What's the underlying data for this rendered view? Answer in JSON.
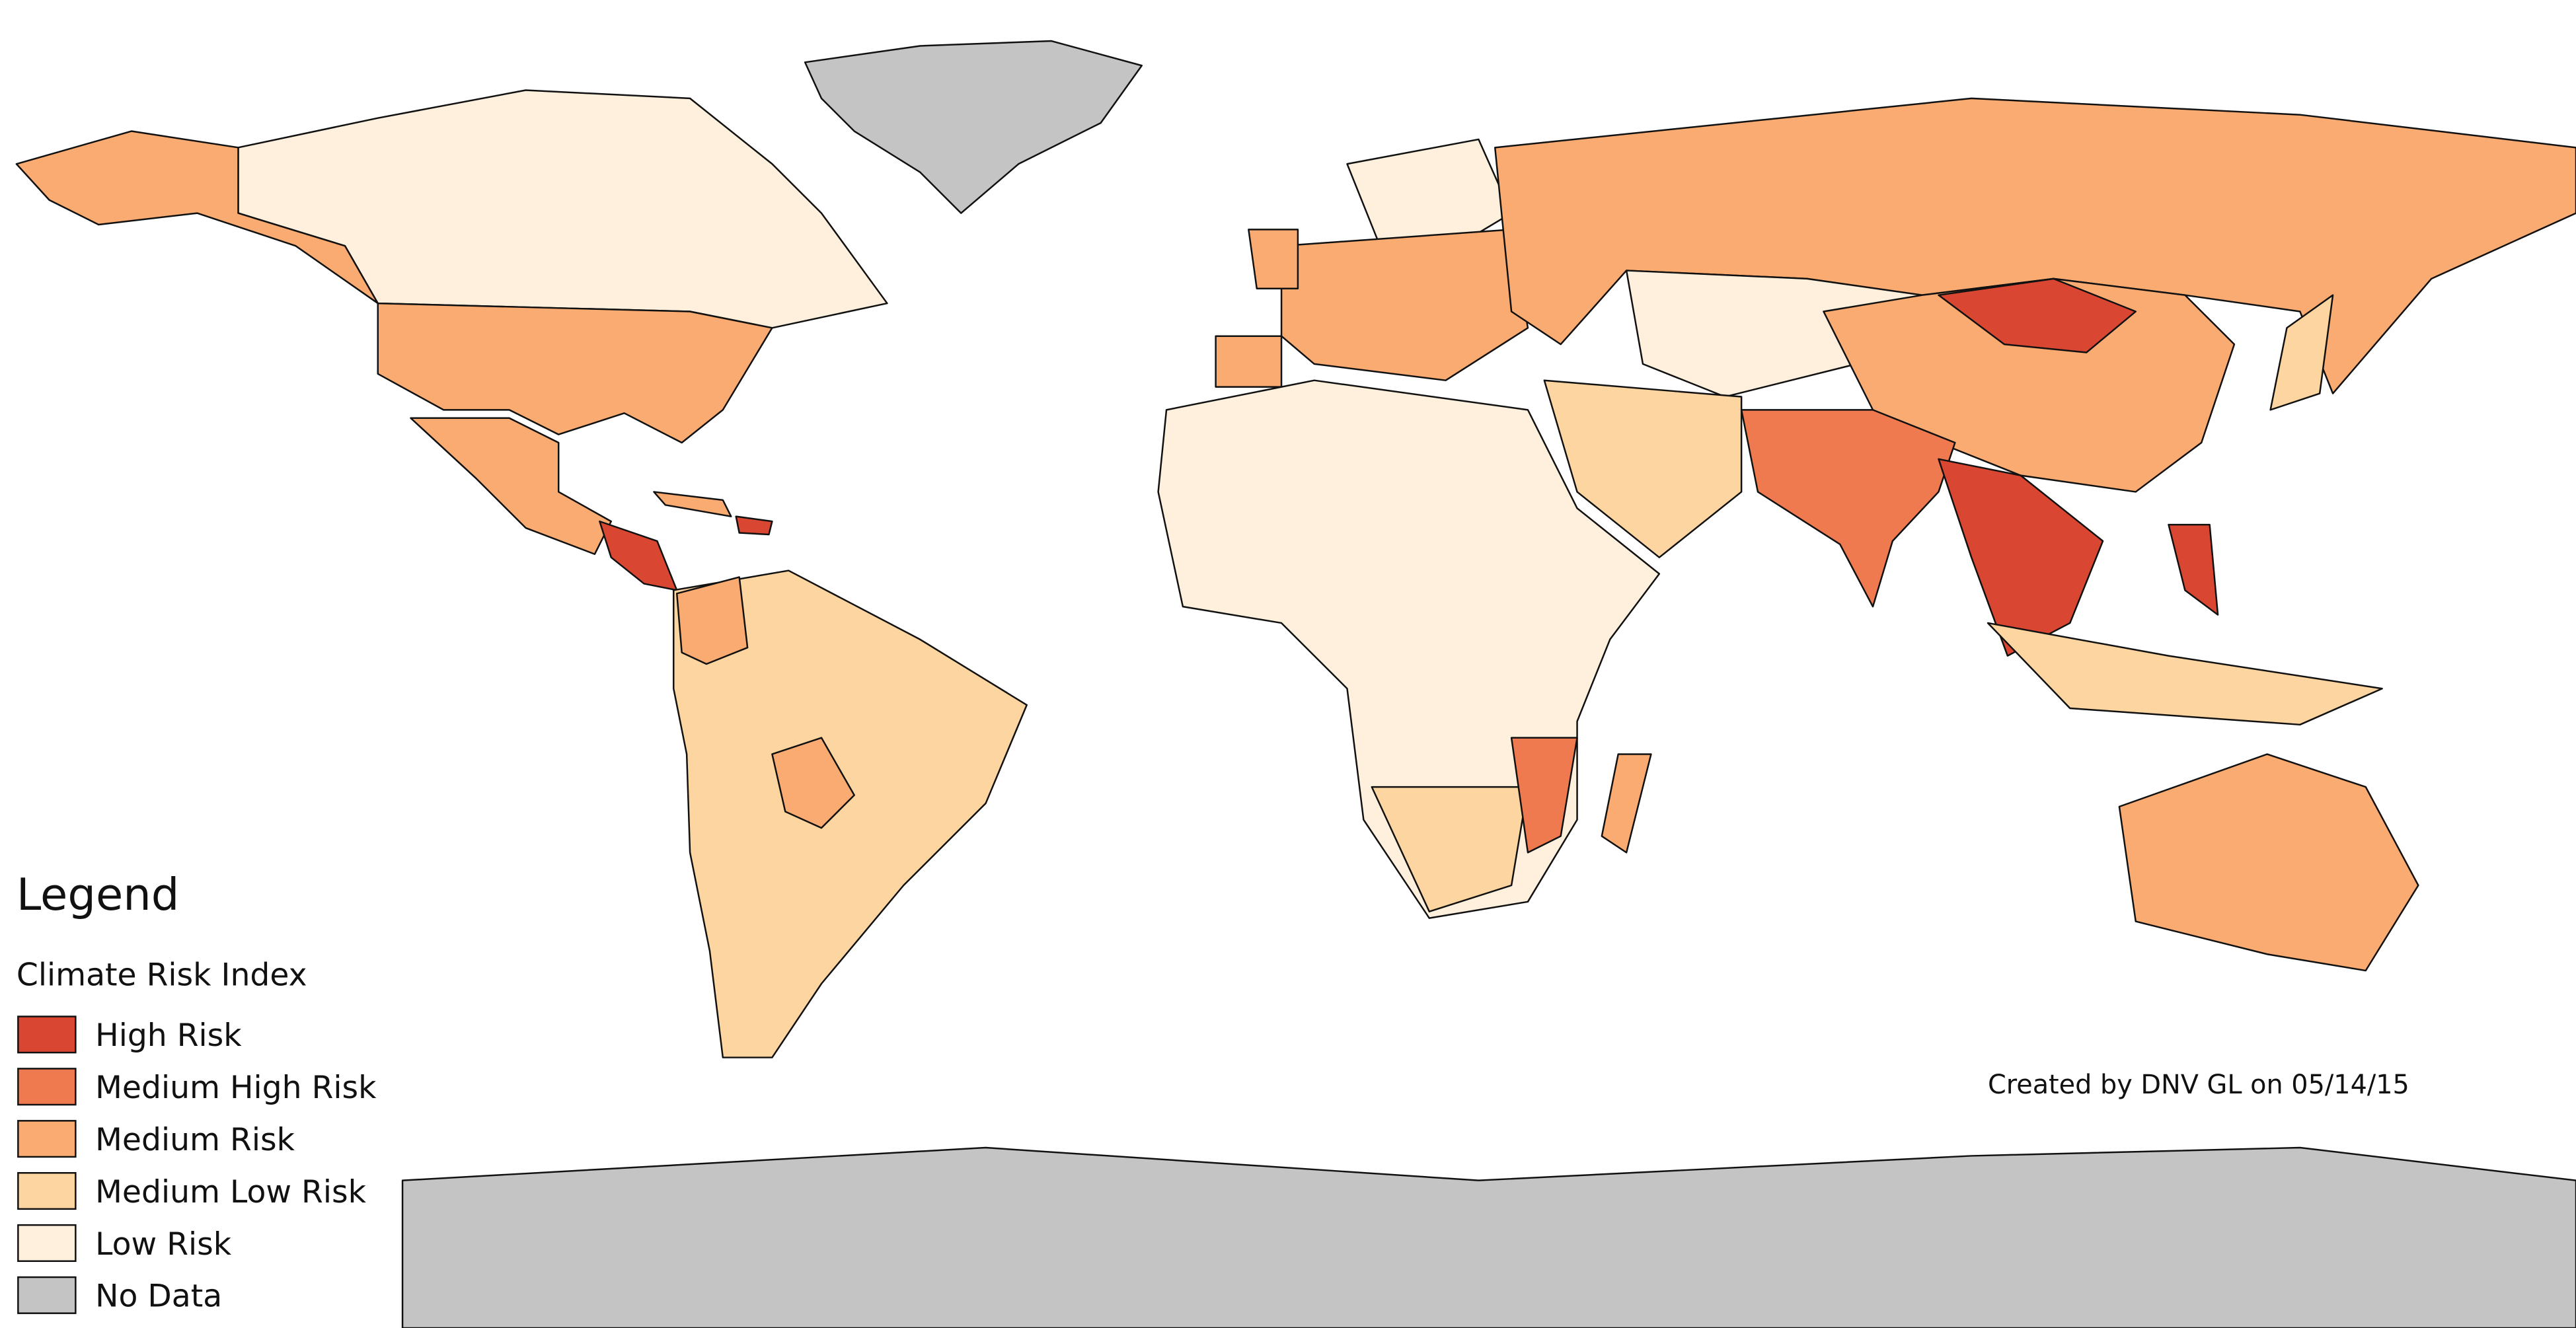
{
  "map": {
    "legend": {
      "title": "Legend",
      "subtitle": "Climate Risk Index",
      "items": [
        {
          "label": "High Risk",
          "color": "#d94632"
        },
        {
          "label": "Medium High Risk",
          "color": "#f07a50"
        },
        {
          "label": "Medium Risk",
          "color": "#f9ab72"
        },
        {
          "label": "Medium Low Risk",
          "color": "#fdd5a0"
        },
        {
          "label": "Low Risk",
          "color": "#fef0dc"
        },
        {
          "label": "No Data",
          "color": "#c4c4c4"
        }
      ]
    },
    "credit": "Created by DNV GL on 05/14/15"
  }
}
